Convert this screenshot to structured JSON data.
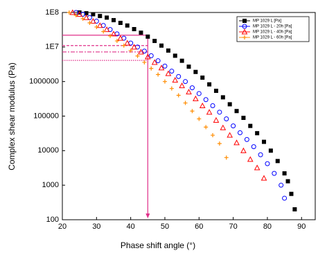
{
  "chart_data": {
    "type": "scatter",
    "x_label": "Phase shift angle (°)",
    "y_label": "Complex shear modulus (Pa)",
    "xlim": [
      20,
      94
    ],
    "xticks": [
      20,
      30,
      40,
      50,
      60,
      70,
      80,
      90
    ],
    "ylim": [
      100,
      100000000
    ],
    "log_y": true,
    "yticks": [
      100,
      1000,
      10000,
      100000,
      1000000,
      {
        "value": 10000000,
        "label": "1E7"
      },
      {
        "value": 100000000,
        "label": "1E8"
      }
    ],
    "legend": "upper right",
    "series": [
      {
        "name": "MP 1029 L [Pa]",
        "color": "#000000",
        "marker": "square",
        "x": [
          25,
          27,
          29,
          31,
          33,
          35,
          37,
          39,
          41,
          43,
          45,
          47,
          49,
          51,
          53,
          55,
          57,
          59,
          61,
          63,
          65,
          67,
          69,
          71,
          73,
          75,
          77,
          79,
          81,
          83,
          85,
          86,
          87,
          88
        ],
        "values": [
          100000000,
          95000000,
          89000000,
          79000000,
          71000000,
          60000000,
          50000000,
          42000000,
          33000000,
          26000000,
          20000000,
          15000000,
          11000000,
          7900000,
          5600000,
          4000000,
          2700000,
          1900000,
          1300000,
          830000,
          540000,
          350000,
          220000,
          140000,
          89000,
          52000,
          32000,
          18000,
          10000,
          5000,
          2200,
          1300,
          560,
          200
        ]
      },
      {
        "name": "MP 1029 L - 20h [Pa]",
        "color": "#0000ff",
        "marker": "circle",
        "x": [
          24,
          26,
          28,
          30,
          32,
          34,
          36,
          38,
          40,
          42,
          44,
          46,
          48,
          50,
          52,
          54,
          56,
          58,
          60,
          62,
          64,
          66,
          68,
          70,
          72,
          74,
          76,
          78,
          80,
          82,
          84,
          85
        ],
        "values": [
          100000000,
          89000000,
          71000000,
          56000000,
          42000000,
          32000000,
          24000000,
          18000000,
          13000000,
          10000000,
          7600000,
          5600000,
          4000000,
          2800000,
          2000000,
          1400000,
          1000000,
          660000,
          450000,
          300000,
          200000,
          130000,
          83000,
          52000,
          33000,
          21000,
          13000,
          7600,
          4200,
          2200,
          1000,
          420
        ]
      },
      {
        "name": "MP 1029 L - 40h [Pa]",
        "color": "#ff0000",
        "marker": "triangle",
        "x": [
          23,
          25,
          27,
          29,
          31,
          33,
          35,
          37,
          39,
          41,
          43,
          45,
          47,
          49,
          51,
          53,
          55,
          57,
          59,
          61,
          63,
          65,
          67,
          69,
          71,
          73,
          75,
          77,
          79
        ],
        "values": [
          100000000,
          89000000,
          71000000,
          56000000,
          42000000,
          32000000,
          24000000,
          18000000,
          13000000,
          10000000,
          7200000,
          5200000,
          3600000,
          2500000,
          1700000,
          1100000,
          760000,
          500000,
          320000,
          200000,
          130000,
          76000,
          46000,
          28000,
          17000,
          10000,
          5600,
          3200,
          1600
        ]
      },
      {
        "name": "MP 1029 L - 60h [Pa]",
        "color": "#ff8c00",
        "marker": "plus",
        "x": [
          22,
          24,
          26,
          28,
          30,
          32,
          34,
          36,
          38,
          40,
          42,
          44,
          46,
          48,
          50,
          52,
          54,
          56,
          58,
          60,
          62,
          64,
          66,
          68
        ],
        "values": [
          100000000,
          83000000,
          66000000,
          50000000,
          38000000,
          28000000,
          21000000,
          15000000,
          11000000,
          7900000,
          5500000,
          3600000,
          2400000,
          1600000,
          1000000,
          630000,
          400000,
          240000,
          140000,
          83000,
          48000,
          28000,
          16000,
          6300
        ]
      }
    ],
    "reference_lines": {
      "color": "#e0308a",
      "x": 45,
      "y": [
        22000000,
        11000000,
        7200000,
        4100000
      ]
    }
  }
}
